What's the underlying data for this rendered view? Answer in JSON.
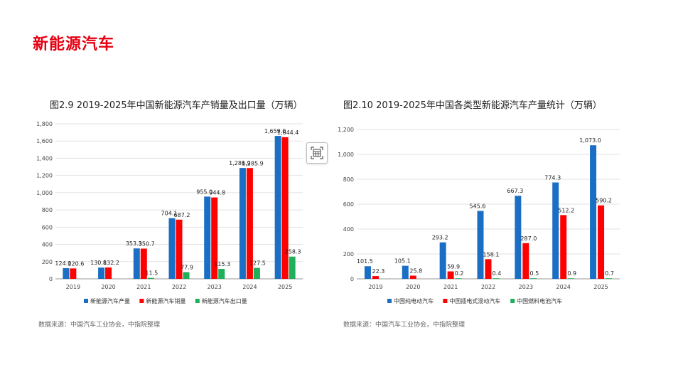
{
  "page": {
    "title": "新能源汽车"
  },
  "colors": {
    "blue": "#1a6fc4",
    "red": "#ff0000",
    "green": "#1fb05a",
    "title_red": "#e60012"
  },
  "icons": {
    "floating_button": "table-grid-icon"
  },
  "chart_data": [
    {
      "type": "bar",
      "title": "图2.9 2019-2025年中国新能源汽车产销量及出口量（万辆）",
      "source": "数据来源：中国汽车工业协会，中指院整理",
      "categories": [
        "2019",
        "2020",
        "2021",
        "2022",
        "2023",
        "2024",
        "2025"
      ],
      "ylim": [
        0,
        1800
      ],
      "yticks": [
        0,
        200,
        400,
        600,
        800,
        1000,
        1200,
        1400,
        1600,
        1800
      ],
      "ytick_labels": [
        "0",
        "200",
        "400",
        "600",
        "800",
        "1,000",
        "1,200",
        "1,400",
        "1,600",
        "1,800"
      ],
      "grid": true,
      "legend_position": "bottom",
      "series": [
        {
          "name": "新能源汽车产量",
          "color": "#1a6fc4",
          "values": [
            124.0,
            130.8,
            353.3,
            704.1,
            955.0,
            1286.9,
            1659.0
          ],
          "labels": [
            "124.0",
            "130.8",
            "353.3",
            "704.1",
            "955.0",
            "1,286.9",
            "1,659.0"
          ]
        },
        {
          "name": "新能源汽车销量",
          "color": "#ff0000",
          "values": [
            120.6,
            132.2,
            350.7,
            687.2,
            944.8,
            1285.9,
            1644.4
          ],
          "labels": [
            "120.6",
            "132.2",
            "350.7",
            "687.2",
            "944.8",
            "1,285.9",
            "1,644.4"
          ]
        },
        {
          "name": "新能源汽车出口量",
          "color": "#1fb05a",
          "values": [
            null,
            null,
            11.5,
            77.9,
            115.3,
            127.5,
            258.3
          ],
          "labels": [
            "",
            "",
            "11.5",
            "77.9",
            "115.3",
            "127.5",
            "258.3"
          ]
        }
      ]
    },
    {
      "type": "bar",
      "title": "图2.10 2019-2025年中国各类型新能源汽车产量统计（万辆）",
      "source": "数据来源：中国汽车工业协会，中指院整理",
      "categories": [
        "2019",
        "2020",
        "2021",
        "2022",
        "2023",
        "2024",
        "2025"
      ],
      "ylim": [
        0,
        1200
      ],
      "yticks": [
        0,
        200,
        400,
        600,
        800,
        1000,
        1200
      ],
      "ytick_labels": [
        "0",
        "200",
        "400",
        "600",
        "800",
        "1,000",
        "1,200"
      ],
      "grid": true,
      "legend_position": "bottom",
      "series": [
        {
          "name": "中国纯电动汽车",
          "color": "#1a6fc4",
          "values": [
            101.5,
            105.1,
            293.2,
            545.6,
            667.3,
            774.3,
            1073.0
          ],
          "labels": [
            "101.5",
            "105.1",
            "293.2",
            "545.6",
            "667.3",
            "774.3",
            "1,073.0"
          ]
        },
        {
          "name": "中国插电式混动汽车",
          "color": "#ff0000",
          "values": [
            22.3,
            25.8,
            59.9,
            158.1,
            287.0,
            512.2,
            590.2
          ],
          "labels": [
            "22.3",
            "25.8",
            "59.9",
            "158.1",
            "287.0",
            "512.2",
            "590.2"
          ]
        },
        {
          "name": "中国燃料电池汽车",
          "color": "#1fb05a",
          "values": [
            null,
            null,
            0.2,
            0.4,
            0.5,
            0.9,
            0.7
          ],
          "labels": [
            "",
            "",
            "0.2",
            "0.4",
            "0.5",
            "0.9",
            "0.7"
          ]
        }
      ]
    }
  ]
}
